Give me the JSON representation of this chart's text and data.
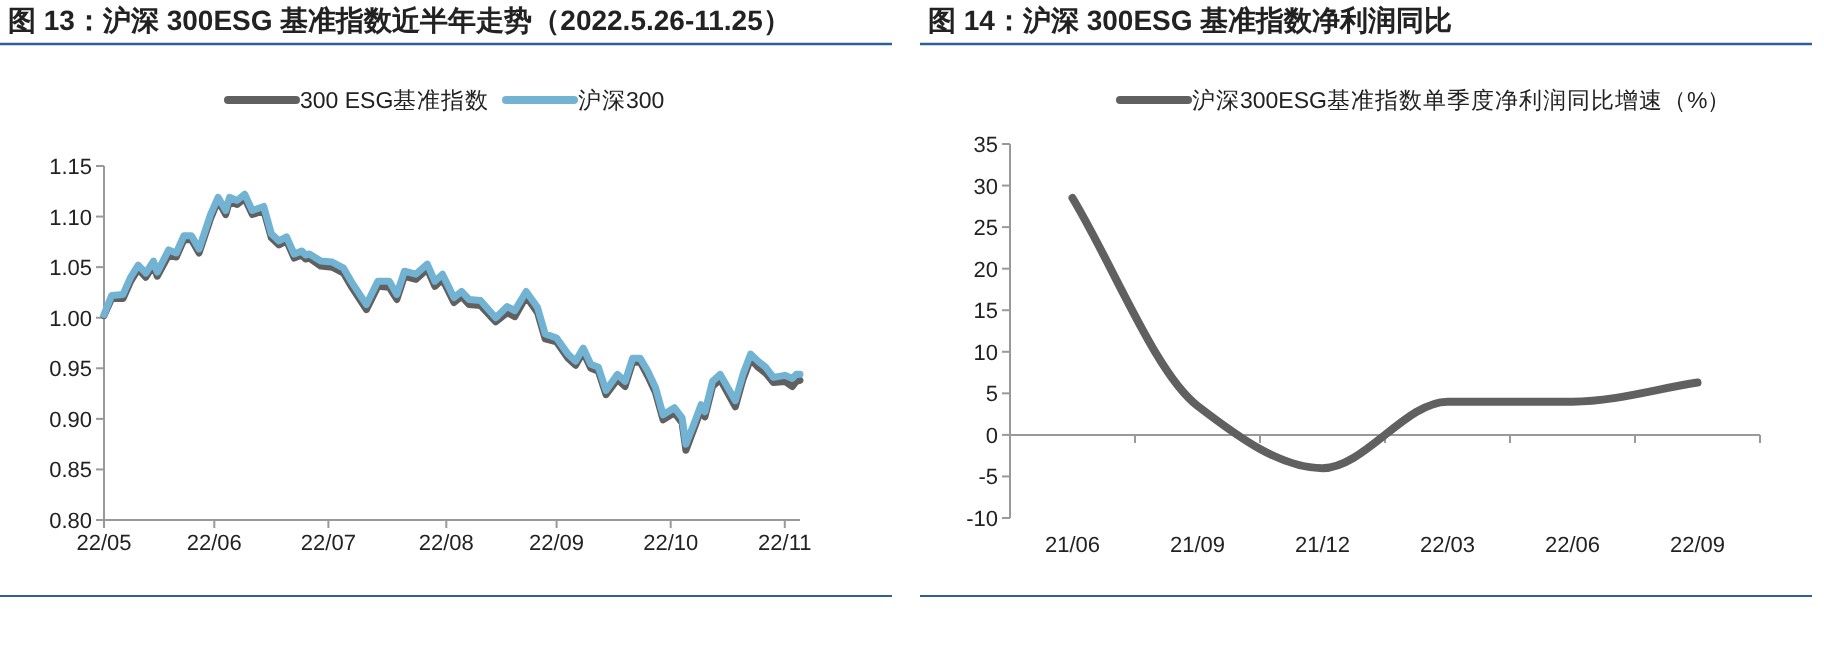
{
  "chart_data": [
    {
      "type": "line",
      "title": "图 13：沪深 300ESG 基准指数近半年走势（2022.5.26-11.25）",
      "legend": "top",
      "x": [
        "2022-05-26",
        "2022-05-28",
        "2022-05-31",
        "2022-06-02",
        "2022-06-04",
        "2022-06-06",
        "2022-06-08",
        "2022-06-09",
        "2022-06-12",
        "2022-06-14",
        "2022-06-16",
        "2022-06-18",
        "2022-06-20",
        "2022-06-23",
        "2022-06-25",
        "2022-06-27",
        "2022-06-28",
        "2022-06-30",
        "2022-07-02",
        "2022-07-04",
        "2022-07-07",
        "2022-07-09",
        "2022-07-11",
        "2022-07-13",
        "2022-07-15",
        "2022-07-17",
        "2022-07-18",
        "2022-07-19",
        "2022-07-22",
        "2022-07-25",
        "2022-07-28",
        "2022-07-30",
        "2022-08-03",
        "2022-08-06",
        "2022-08-09",
        "2022-08-11",
        "2022-08-13",
        "2022-08-16",
        "2022-08-19",
        "2022-08-21",
        "2022-08-23",
        "2022-08-26",
        "2022-08-28",
        "2022-08-30",
        "2022-09-02",
        "2022-09-06",
        "2022-09-09",
        "2022-09-11",
        "2022-09-14",
        "2022-09-17",
        "2022-09-19",
        "2022-09-22",
        "2022-09-25",
        "2022-09-27",
        "2022-09-29",
        "2022-10-01",
        "2022-10-03",
        "2022-10-05",
        "2022-10-08",
        "2022-10-10",
        "2022-10-12",
        "2022-10-14",
        "2022-10-16",
        "2022-10-18",
        "2022-10-20",
        "2022-10-23",
        "2022-10-25",
        "2022-10-26",
        "2022-10-28",
        "2022-10-30",
        "2022-10-31",
        "2022-11-02",
        "2022-11-04",
        "2022-11-08",
        "2022-11-10",
        "2022-11-12",
        "2022-11-14",
        "2022-11-16",
        "2022-11-18",
        "2022-11-21",
        "2022-11-23",
        "2022-11-24",
        "2022-11-25"
      ],
      "series": [
        {
          "name": "300 ESG基准指数",
          "color": "#606060",
          "values": [
            1.002,
            1.019,
            1.019,
            1.036,
            1.048,
            1.04,
            1.052,
            1.041,
            1.062,
            1.06,
            1.077,
            1.077,
            1.064,
            1.098,
            1.116,
            1.102,
            1.115,
            1.112,
            1.118,
            1.102,
            1.106,
            1.079,
            1.072,
            1.076,
            1.059,
            1.062,
            1.058,
            1.059,
            1.051,
            1.05,
            1.044,
            1.031,
            1.008,
            1.031,
            1.03,
            1.018,
            1.041,
            1.038,
            1.048,
            1.031,
            1.038,
            1.015,
            1.021,
            1.013,
            1.012,
            0.996,
            1.005,
            1.001,
            1.021,
            1.005,
            0.979,
            0.976,
            0.96,
            0.953,
            0.966,
            0.95,
            0.947,
            0.924,
            0.939,
            0.932,
            0.956,
            0.956,
            0.942,
            0.926,
            0.899,
            0.906,
            0.896,
            0.869,
            0.889,
            0.909,
            0.902,
            0.932,
            0.939,
            0.912,
            0.939,
            0.959,
            0.951,
            0.945,
            0.936,
            0.937,
            0.932,
            0.937,
            0.938
          ]
        },
        {
          "name": "沪深300",
          "color": "#72b3d3",
          "values": [
            1.003,
            1.022,
            1.023,
            1.04,
            1.052,
            1.044,
            1.056,
            1.045,
            1.067,
            1.064,
            1.081,
            1.081,
            1.068,
            1.102,
            1.119,
            1.106,
            1.119,
            1.116,
            1.122,
            1.106,
            1.11,
            1.083,
            1.076,
            1.08,
            1.063,
            1.066,
            1.062,
            1.063,
            1.056,
            1.055,
            1.049,
            1.036,
            1.013,
            1.036,
            1.036,
            1.023,
            1.046,
            1.043,
            1.053,
            1.036,
            1.043,
            1.02,
            1.026,
            1.018,
            1.017,
            1.0,
            1.011,
            1.007,
            1.026,
            1.01,
            0.984,
            0.98,
            0.964,
            0.957,
            0.97,
            0.954,
            0.951,
            0.928,
            0.944,
            0.937,
            0.96,
            0.96,
            0.947,
            0.931,
            0.904,
            0.911,
            0.901,
            0.875,
            0.894,
            0.914,
            0.907,
            0.937,
            0.944,
            0.918,
            0.944,
            0.964,
            0.957,
            0.951,
            0.941,
            0.943,
            0.94,
            0.944,
            0.944
          ]
        }
      ],
      "xlim": [
        "2022-05-26",
        "2022-11-25"
      ],
      "xticks": [
        {
          "value": "2022-05-26",
          "label": "22/05"
        },
        {
          "value": "2022-06-24",
          "label": "22/06"
        },
        {
          "value": "2022-07-24",
          "label": "22/07"
        },
        {
          "value": "2022-08-24",
          "label": "22/08"
        },
        {
          "value": "2022-09-22",
          "label": "22/09"
        },
        {
          "value": "2022-10-22",
          "label": "22/10"
        },
        {
          "value": "2022-11-21",
          "label": "22/11"
        }
      ],
      "ylim": [
        0.8,
        1.15
      ],
      "yticks": [
        {
          "value": 0.8,
          "label": "0.80"
        },
        {
          "value": 0.85,
          "label": "0.85"
        },
        {
          "value": 0.9,
          "label": "0.90"
        },
        {
          "value": 0.95,
          "label": "0.95"
        },
        {
          "value": 1,
          "label": "1.00"
        },
        {
          "value": 1.05,
          "label": "1.05"
        },
        {
          "value": 1.1,
          "label": "1.10"
        },
        {
          "value": 1.15,
          "label": "1.15"
        }
      ]
    },
    {
      "type": "line",
      "title": "图 14：沪深 300ESG 基准指数净利润同比",
      "legend": "top",
      "categories": [
        "21/06",
        "21/09",
        "21/12",
        "22/03",
        "22/06",
        "22/09"
      ],
      "series": [
        {
          "name": "沪深300ESG基准指数单季度净利润同比增速（%）",
          "color": "#606060",
          "values": [
            28.5,
            3.5,
            -4,
            4,
            4,
            6.3
          ]
        }
      ],
      "ylim": [
        -10,
        35
      ],
      "yticks": [
        -10,
        -5,
        0,
        5,
        10,
        15,
        20,
        25,
        30,
        35
      ]
    }
  ]
}
